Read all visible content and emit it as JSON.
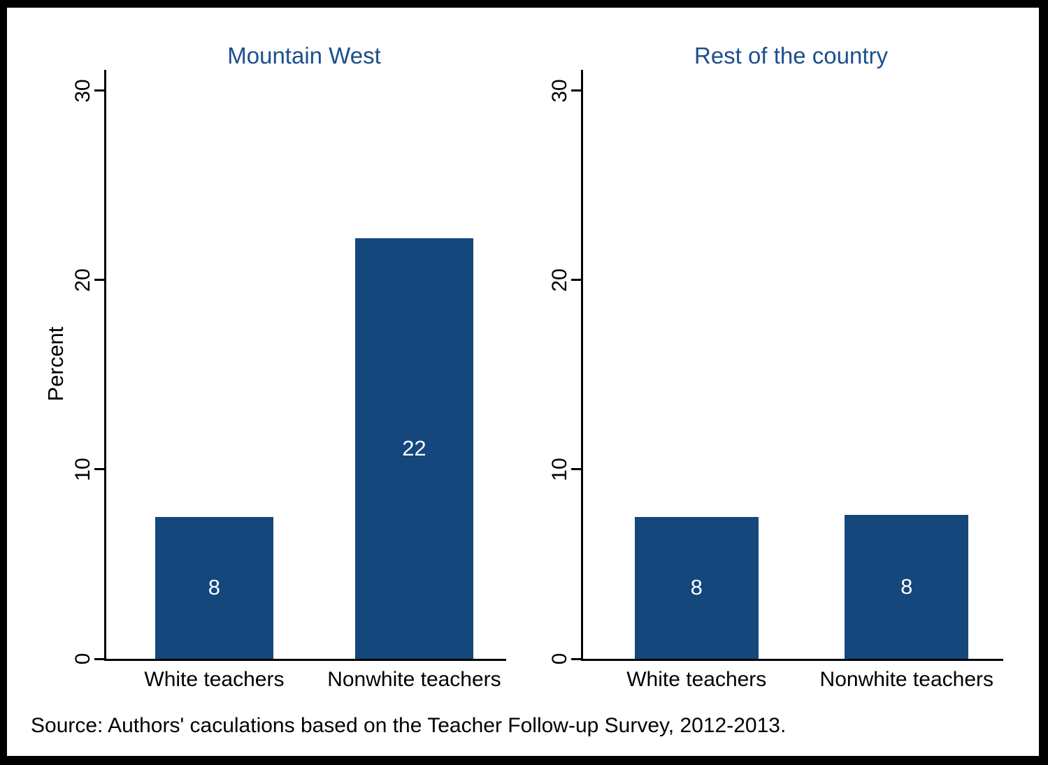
{
  "chart_data": {
    "type": "bar",
    "layout": "two-panel",
    "ylabel": "Percent",
    "ylim": [
      0,
      30
    ],
    "yticks": [
      0,
      10,
      20,
      30
    ],
    "grid": false,
    "bar_color": "#14477B",
    "title_color": "#1B4F8C",
    "axis_color": "#000000",
    "bar_label_color": "#FFFFFF",
    "panels": [
      {
        "title": "Mountain West",
        "categories": [
          "White teachers",
          "Nonwhite teachers"
        ],
        "values": [
          7.5,
          22.2
        ],
        "bar_labels": [
          "8",
          "22"
        ]
      },
      {
        "title": "Rest of the country",
        "categories": [
          "White teachers",
          "Nonwhite teachers"
        ],
        "values": [
          7.5,
          7.6
        ],
        "bar_labels": [
          "8",
          "8"
        ]
      }
    ]
  },
  "source_note": "Source: Authors' caculations based on the Teacher Follow-up Survey, 2012-2013."
}
